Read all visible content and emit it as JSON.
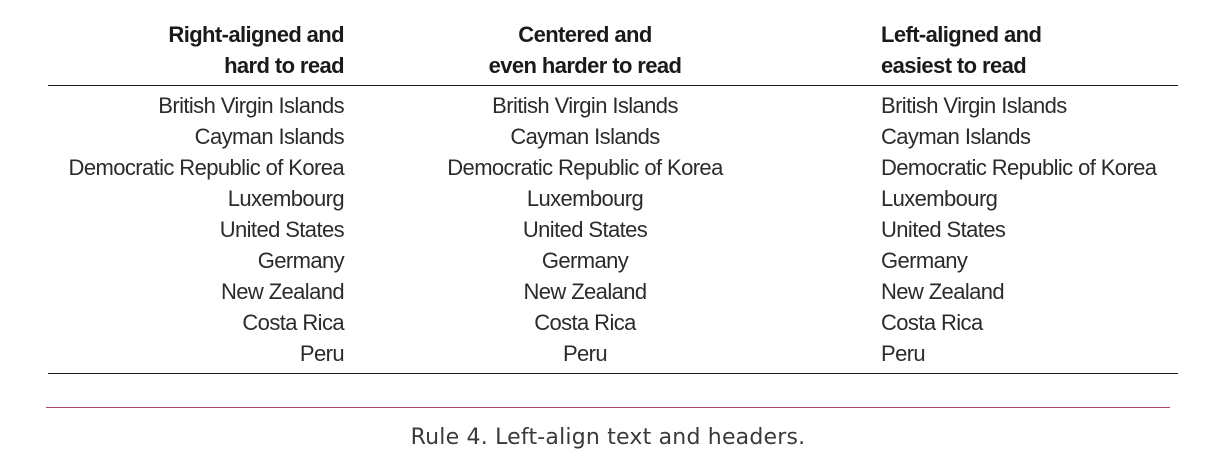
{
  "table": {
    "columns": [
      {
        "header_lines": [
          "Right-aligned and",
          "hard to read"
        ],
        "alignment": "right"
      },
      {
        "header_lines": [
          "Centered and",
          "even harder to read"
        ],
        "alignment": "center"
      },
      {
        "header_lines": [
          "Left-aligned and",
          "easiest to read"
        ],
        "alignment": "left"
      }
    ],
    "rows": [
      "British Virgin Islands",
      "Cayman Islands",
      "Democratic Republic of Korea",
      "Luxembourg",
      "United States",
      "Germany",
      "New Zealand",
      "Costa Rica",
      "Peru"
    ]
  },
  "caption": "Rule 4. Left-align text and headers.",
  "colors": {
    "rule_line": "#1a1a1a",
    "caption_rule": "#a8475f",
    "text": "#2b2b2b"
  }
}
